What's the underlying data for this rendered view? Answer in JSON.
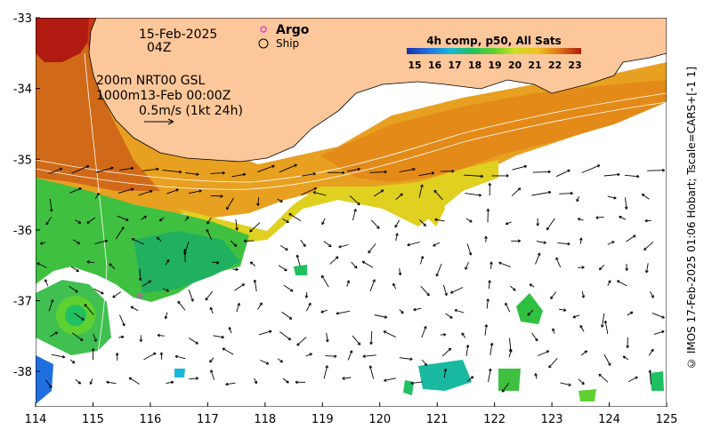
{
  "map": {
    "lon_range": [
      114,
      125
    ],
    "lat_range": [
      -38.5,
      -33
    ],
    "lon_ticks": [
      "114",
      "115",
      "116",
      "117",
      "118",
      "119",
      "120",
      "121",
      "122",
      "123",
      "124",
      "125"
    ],
    "lat_ticks": [
      "-33",
      "-34",
      "-35",
      "-36",
      "-37",
      "-38"
    ]
  },
  "annotations": {
    "date": "15-Feb-2025",
    "hour": "04Z",
    "depth_line1": "200m  NRT00 GSL",
    "depth_line2": "1000m13-Feb 00:00Z",
    "scale_arrow": "0.5m/s (1kt 24h)"
  },
  "legend": {
    "argo_label": "Argo",
    "ship_label": "Ship",
    "argo_color": "#e040e0"
  },
  "colorbar": {
    "title": "4h comp, p50, All Sats",
    "ticks": [
      "15",
      "16",
      "17",
      "18",
      "19",
      "20",
      "21",
      "22",
      "23"
    ],
    "colors": [
      "#1a2fa8",
      "#1f6fe0",
      "#19b8d8",
      "#20c060",
      "#60d030",
      "#c8e020",
      "#f0c020",
      "#e07818",
      "#b01a10"
    ]
  },
  "credit": "© IMOS 17-Feb-2025 01:06 Hobart; Tscale=CARS+[-1 1]",
  "palette": {
    "land": "#fcc79a",
    "coast": "#000000",
    "no_data": "#ffffff"
  }
}
